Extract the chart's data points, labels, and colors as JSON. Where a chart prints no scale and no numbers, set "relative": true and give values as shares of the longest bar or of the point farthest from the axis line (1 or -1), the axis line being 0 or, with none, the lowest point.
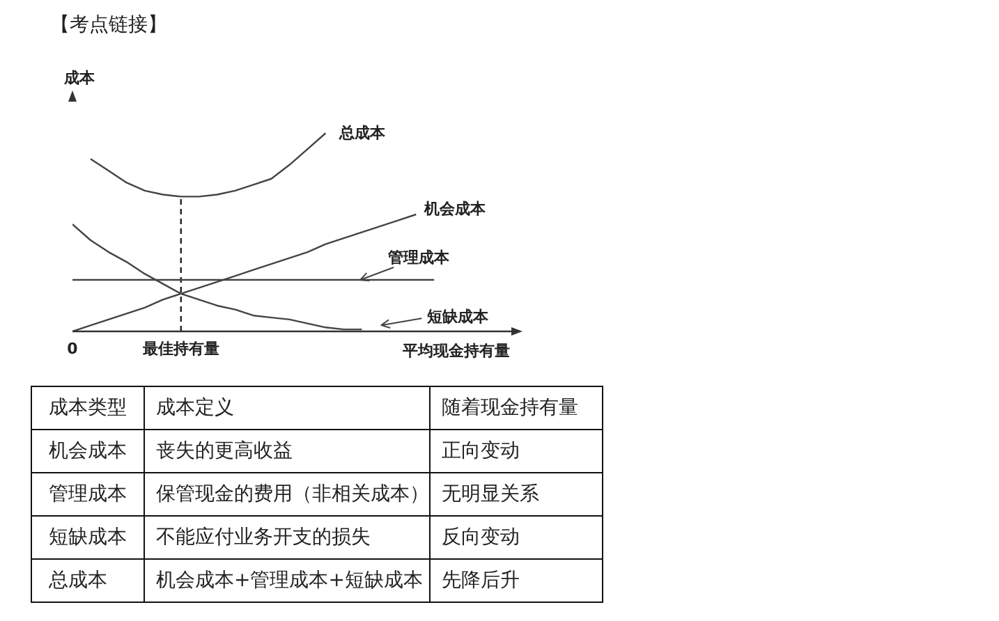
{
  "chart_data": [
    {
      "type": "line",
      "title": "【考点链接】",
      "ylabel": "成本",
      "xlabel": "平均现金持有量",
      "relative": true,
      "categories": [
        "0",
        null,
        null,
        null,
        null,
        null,
        "最佳持有量",
        null,
        null,
        null,
        null,
        null,
        null,
        null,
        null,
        null,
        null,
        null,
        null,
        null,
        null,
        null,
        null,
        null,
        null
      ],
      "series": [
        {
          "name": "总成本",
          "color": "#444444",
          "values": [
            null,
            0.87,
            0.81,
            0.75,
            0.71,
            0.69,
            0.68,
            0.68,
            0.69,
            0.71,
            0.74,
            0.77,
            0.84,
            0.92,
            1,
            null,
            null,
            null,
            null,
            null,
            null,
            null,
            null,
            null,
            null
          ]
        },
        {
          "name": "机会成本",
          "color": "#444444",
          "values": [
            0,
            0.03,
            0.06,
            0.09,
            0.12,
            0.16,
            0.19,
            0.22,
            0.25,
            0.28,
            0.31,
            0.34,
            0.37,
            0.4,
            0.44,
            0.47,
            0.5,
            0.53,
            0.56,
            0.59,
            null,
            null,
            null,
            null,
            null
          ]
        },
        {
          "name": "管理成本",
          "color": "#444444",
          "values": [
            0.26,
            0.26,
            0.26,
            0.26,
            0.26,
            0.26,
            0.26,
            0.26,
            0.26,
            0.26,
            0.26,
            0.26,
            0.26,
            0.26,
            0.26,
            0.26,
            0.26,
            0.26,
            0.26,
            0.26,
            0.26,
            null,
            null,
            null,
            null
          ]
        },
        {
          "name": "短缺成本",
          "color": "#444444",
          "values": [
            0.54,
            0.46,
            0.4,
            0.35,
            0.29,
            0.24,
            0.19,
            0.16,
            0.13,
            0.11,
            0.08,
            0.07,
            0.06,
            0.04,
            0.02,
            0.01,
            0.01,
            null,
            null,
            null,
            null,
            null,
            null,
            null,
            null
          ]
        }
      ],
      "ref_lines": [
        {
          "axis": "x",
          "value": "最佳持有量",
          "color": "#222222",
          "line_style": "dashed"
        }
      ],
      "line_style": "solid"
    },
    {
      "type": "other",
      "categories": [
        "成本类型",
        "成本定义",
        "随着现金持有量"
      ],
      "y_categories": [
        "机会成本",
        "管理成本",
        "短缺成本",
        "总成本"
      ],
      "cell_labels": [
        [
          "丧失的更高收益",
          "正向变动"
        ],
        [
          "保管现金的费用（非相关成本）",
          "无明显关系"
        ],
        [
          "不能应付业务开支的损失",
          "反向变动"
        ],
        [
          "机会成本+管理成本+短缺成本",
          "先降后升"
        ]
      ]
    }
  ]
}
